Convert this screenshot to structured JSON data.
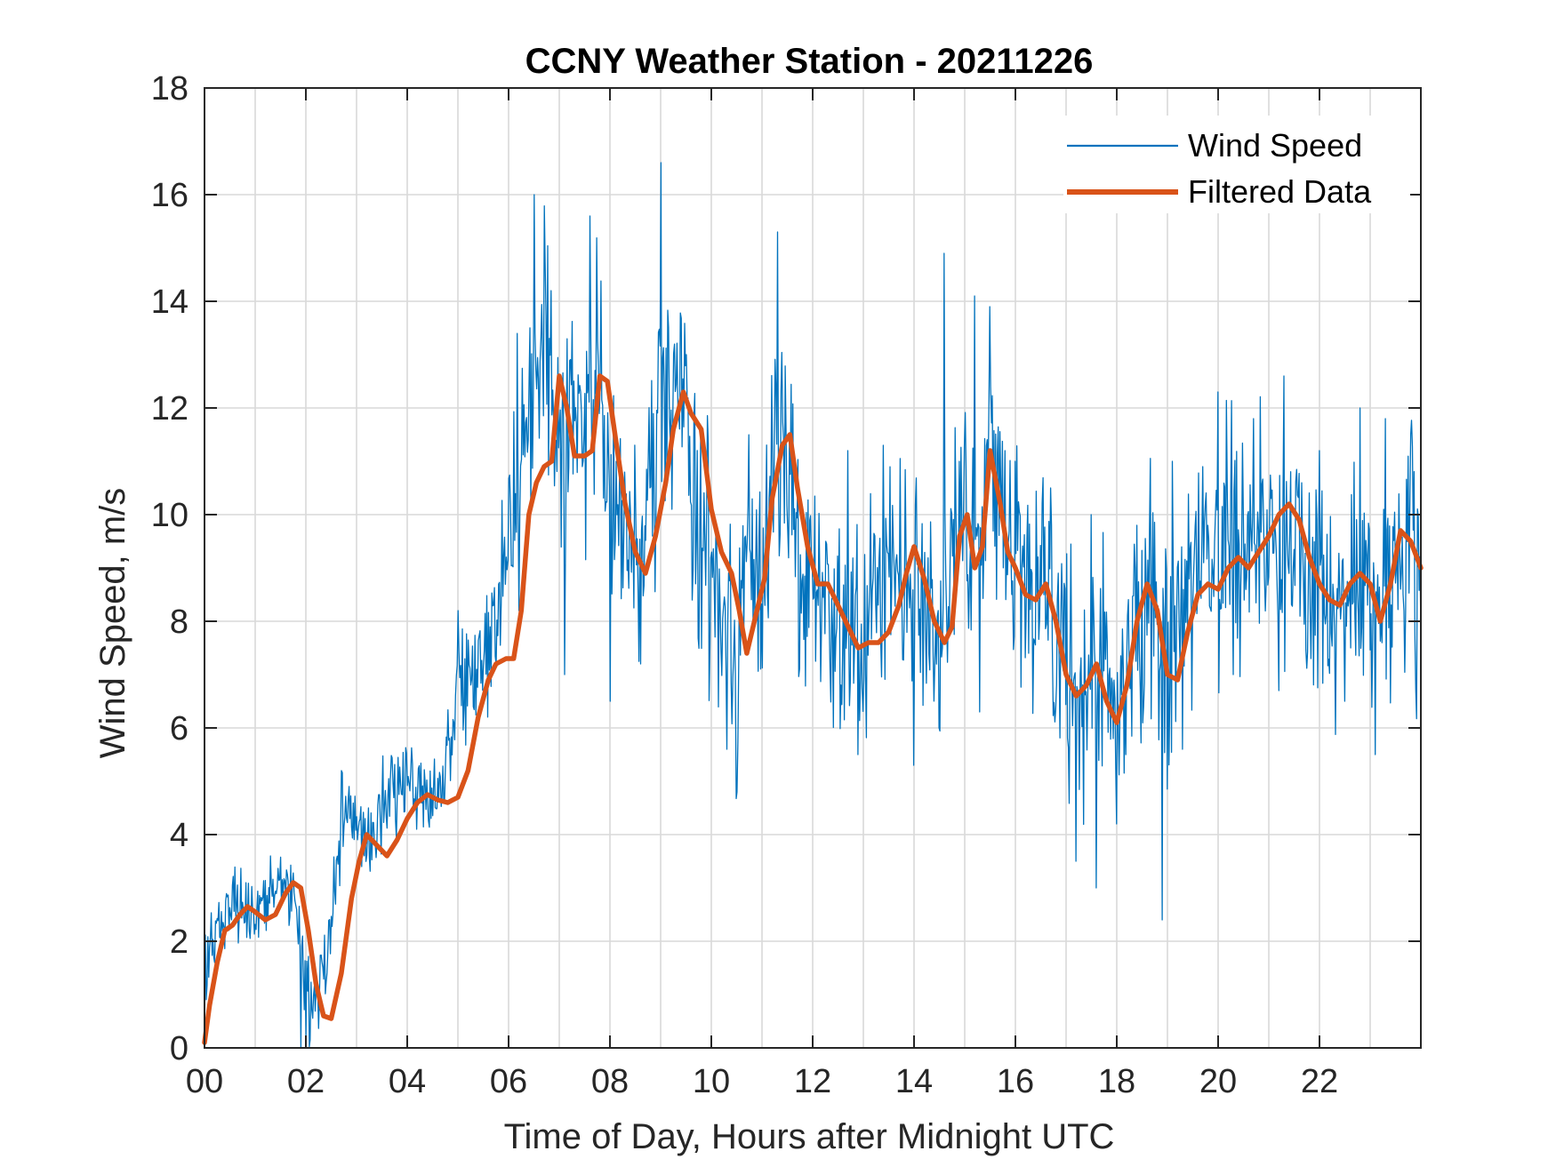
{
  "chart_data": {
    "type": "line",
    "title": "CCNY Weather Station - 20211226",
    "xlabel": "Time of Day, Hours after Midnight UTC",
    "ylabel": "Wind Speed, m/s",
    "xlim": [
      0,
      24
    ],
    "ylim": [
      0,
      18
    ],
    "xticks": [
      0,
      2,
      4,
      6,
      8,
      10,
      12,
      14,
      16,
      18,
      20,
      22
    ],
    "xtick_labels": [
      "00",
      "02",
      "04",
      "06",
      "08",
      "10",
      "12",
      "14",
      "16",
      "18",
      "20",
      "22"
    ],
    "yticks": [
      0,
      2,
      4,
      6,
      8,
      10,
      12,
      14,
      16,
      18
    ],
    "ytick_labels": [
      "0",
      "2",
      "4",
      "6",
      "8",
      "10",
      "12",
      "14",
      "16",
      "18"
    ],
    "grid": true,
    "legend_position": "top-right",
    "series": [
      {
        "name": "Wind Speed",
        "color": "#0072BD",
        "style": "raw",
        "x": [
          0,
          0.25,
          0.5,
          0.75,
          1.0,
          1.25,
          1.5,
          1.75,
          2.0,
          2.25,
          2.5,
          2.75,
          3.0,
          3.25,
          3.5,
          3.75,
          4.0,
          4.25,
          4.5,
          4.75,
          5.0,
          5.25,
          5.5,
          5.75,
          6.0,
          6.25,
          6.5,
          6.75,
          7.0,
          7.25,
          7.5,
          7.75,
          8.0,
          8.25,
          8.5,
          8.75,
          9.0,
          9.25,
          9.5,
          9.75,
          10.0,
          10.25,
          10.5,
          10.75,
          11.0,
          11.25,
          11.5,
          11.75,
          12.0,
          12.25,
          12.5,
          12.75,
          13.0,
          13.25,
          13.5,
          13.75,
          14.0,
          14.25,
          14.5,
          14.75,
          15.0,
          15.25,
          15.5,
          15.75,
          16.0,
          16.25,
          16.5,
          16.75,
          17.0,
          17.25,
          17.5,
          17.75,
          18.0,
          18.25,
          18.5,
          18.75,
          19.0,
          19.25,
          19.5,
          19.75,
          20.0,
          20.25,
          20.5,
          20.75,
          21.0,
          21.25,
          21.5,
          21.75,
          22.0,
          22.25,
          22.5,
          22.75,
          23.0,
          23.25,
          23.5,
          23.75,
          24.0
        ],
        "y": [
          1.5,
          2.5,
          2.7,
          2.5,
          2.5,
          2.7,
          3.0,
          3.1,
          1.2,
          0.8,
          2.5,
          4.5,
          3.8,
          4.0,
          4.4,
          4.8,
          4.9,
          4.8,
          4.7,
          5.0,
          6.8,
          7.4,
          7.2,
          7.8,
          9.8,
          11.5,
          12.0,
          13.5,
          11.0,
          12.5,
          11.0,
          13.0,
          10.5,
          9.5,
          9.0,
          10.5,
          12.0,
          12.8,
          11.5,
          9.5,
          8.8,
          8.0,
          6.8,
          9.5,
          8.5,
          12.0,
          11.0,
          8.5,
          8.8,
          8.5,
          8.0,
          7.8,
          7.6,
          7.8,
          8.5,
          9.0,
          9.3,
          8.5,
          7.8,
          9.0,
          10.0,
          9.5,
          11.5,
          10.0,
          9.0,
          8.5,
          8.5,
          8.0,
          7.0,
          6.8,
          6.5,
          7.5,
          6.0,
          7.5,
          8.5,
          8.0,
          7.0,
          8.0,
          8.5,
          9.0,
          9.0,
          9.5,
          9.3,
          9.5,
          10.0,
          9.5,
          9.8,
          9.0,
          8.5,
          8.3,
          8.5,
          9.0,
          8.5,
          8.0,
          9.5,
          9.2,
          9.0
        ],
        "peaks": [
          [
            1.3,
            3.6
          ],
          [
            2.7,
            5.2
          ],
          [
            5.0,
            8.2
          ],
          [
            5.7,
            8.3
          ],
          [
            6.5,
            16.0
          ],
          [
            7.1,
            13.6
          ],
          [
            7.6,
            15.6
          ],
          [
            8.0,
            14.0
          ],
          [
            9.0,
            16.6
          ],
          [
            9.5,
            13.0
          ],
          [
            10.3,
            11.0
          ],
          [
            11.3,
            15.3
          ],
          [
            12.7,
            11.2
          ],
          [
            13.4,
            11.3
          ],
          [
            14.0,
            11.0
          ],
          [
            14.6,
            14.9
          ],
          [
            15.2,
            14.1
          ],
          [
            15.5,
            13.9
          ],
          [
            16.0,
            11.0
          ],
          [
            16.7,
            10.5
          ],
          [
            17.5,
            10.0
          ],
          [
            18.4,
            9.8
          ],
          [
            19.1,
            11.0
          ],
          [
            20.0,
            12.3
          ],
          [
            20.7,
            11.8
          ],
          [
            21.3,
            12.6
          ],
          [
            22.0,
            11.2
          ],
          [
            22.8,
            12.0
          ],
          [
            23.3,
            11.8
          ],
          [
            23.8,
            11.5
          ]
        ],
        "troughs": [
          [
            0.2,
            1.6
          ],
          [
            1.9,
            0.0
          ],
          [
            2.0,
            0.2
          ],
          [
            3.1,
            3.4
          ],
          [
            6.2,
            8.2
          ],
          [
            7.1,
            7.0
          ],
          [
            8.0,
            6.5
          ],
          [
            8.6,
            7.2
          ],
          [
            10.3,
            5.6
          ],
          [
            10.5,
            4.8
          ],
          [
            12.9,
            5.5
          ],
          [
            14.0,
            5.3
          ],
          [
            14.5,
            6.0
          ],
          [
            15.3,
            6.3
          ],
          [
            17.2,
            3.5
          ],
          [
            17.6,
            3.0
          ],
          [
            18.0,
            4.2
          ],
          [
            18.9,
            2.4
          ],
          [
            19.3,
            5.6
          ],
          [
            20.3,
            7.0
          ],
          [
            21.2,
            6.7
          ],
          [
            22.5,
            6.5
          ],
          [
            23.1,
            5.5
          ],
          [
            23.9,
            6.7
          ]
        ]
      },
      {
        "name": "Filtered Data",
        "color": "#D95319",
        "style": "smooth",
        "x": [
          0,
          0.1,
          0.25,
          0.4,
          0.55,
          0.7,
          0.85,
          1.0,
          1.2,
          1.4,
          1.6,
          1.75,
          1.9,
          2.05,
          2.2,
          2.35,
          2.5,
          2.7,
          2.9,
          3.05,
          3.2,
          3.4,
          3.6,
          3.8,
          4.0,
          4.2,
          4.4,
          4.6,
          4.8,
          5.0,
          5.2,
          5.4,
          5.6,
          5.75,
          5.95,
          6.1,
          6.25,
          6.4,
          6.55,
          6.7,
          6.85,
          7.0,
          7.15,
          7.3,
          7.5,
          7.65,
          7.8,
          7.95,
          8.1,
          8.3,
          8.5,
          8.7,
          8.9,
          9.1,
          9.25,
          9.45,
          9.6,
          9.8,
          10.0,
          10.2,
          10.4,
          10.55,
          10.7,
          10.9,
          11.05,
          11.2,
          11.4,
          11.55,
          11.7,
          11.9,
          12.1,
          12.3,
          12.5,
          12.7,
          12.9,
          13.1,
          13.3,
          13.5,
          13.7,
          13.85,
          14.0,
          14.2,
          14.4,
          14.6,
          14.75,
          14.9,
          15.05,
          15.2,
          15.35,
          15.5,
          15.7,
          15.85,
          16.0,
          16.2,
          16.4,
          16.6,
          16.8,
          17.0,
          17.2,
          17.4,
          17.6,
          17.8,
          18.0,
          18.2,
          18.4,
          18.6,
          18.8,
          19.0,
          19.2,
          19.4,
          19.6,
          19.8,
          20.0,
          20.2,
          20.4,
          20.6,
          20.8,
          21.0,
          21.2,
          21.4,
          21.6,
          21.8,
          22.0,
          22.2,
          22.4,
          22.6,
          22.8,
          23.0,
          23.2,
          23.4,
          23.6,
          23.8,
          24.0
        ],
        "y": [
          0.1,
          0.8,
          1.6,
          2.2,
          2.3,
          2.5,
          2.65,
          2.55,
          2.4,
          2.5,
          2.9,
          3.1,
          3.0,
          2.2,
          1.2,
          0.6,
          0.55,
          1.4,
          2.8,
          3.5,
          4.0,
          3.8,
          3.6,
          3.9,
          4.3,
          4.6,
          4.75,
          4.65,
          4.6,
          4.7,
          5.2,
          6.2,
          6.9,
          7.2,
          7.3,
          7.3,
          8.2,
          10.0,
          10.6,
          10.9,
          11.0,
          12.6,
          12.0,
          11.1,
          11.1,
          11.2,
          12.6,
          12.5,
          11.5,
          10.2,
          9.3,
          8.9,
          9.6,
          10.6,
          11.6,
          12.3,
          11.9,
          11.6,
          10.1,
          9.3,
          8.9,
          8.2,
          7.4,
          8.2,
          8.8,
          10.3,
          11.3,
          11.5,
          10.5,
          9.4,
          8.7,
          8.7,
          8.3,
          7.9,
          7.5,
          7.6,
          7.6,
          7.8,
          8.3,
          8.9,
          9.4,
          8.8,
          8.0,
          7.6,
          7.9,
          9.6,
          10.0,
          9.0,
          9.4,
          11.2,
          10.2,
          9.3,
          9.0,
          8.5,
          8.4,
          8.7,
          8.0,
          7.0,
          6.6,
          6.8,
          7.2,
          6.5,
          6.1,
          6.8,
          8.0,
          8.7,
          8.2,
          7.0,
          6.9,
          7.8,
          8.5,
          8.7,
          8.6,
          9.0,
          9.2,
          9.0,
          9.3,
          9.6,
          10.0,
          10.2,
          9.9,
          9.2,
          8.7,
          8.4,
          8.3,
          8.7,
          8.9,
          8.7,
          8.0,
          8.7,
          9.7,
          9.5,
          9.0
        ],
        "endpoint": [
          24,
          9.0
        ]
      }
    ]
  }
}
